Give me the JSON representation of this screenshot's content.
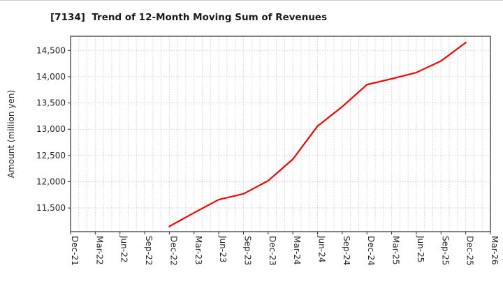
{
  "page": {
    "background_color": "#ffffff",
    "top_border_color": "#c9c9c9"
  },
  "chart_data": {
    "type": "line",
    "title": "[7134]  Trend of 12-Month Moving Sum of Revenues",
    "xlabel": "",
    "ylabel": "Amount (million yen)",
    "grid": true,
    "legend": "none",
    "x_axis": {
      "start": "Dec-21",
      "end": "Mar-26",
      "months_total": 51,
      "gridline_interval_months": 1,
      "tick_label_interval_months": 3
    },
    "x_tick_labels": [
      "Dec-21",
      "Mar-22",
      "Jun-22",
      "Sep-22",
      "Dec-22",
      "Mar-23",
      "Jun-23",
      "Sep-23",
      "Dec-23",
      "Mar-24",
      "Jun-24",
      "Sep-24",
      "Dec-24",
      "Mar-25",
      "Jun-25",
      "Sep-25",
      "Dec-25",
      "Mar-26"
    ],
    "y_ticks": [
      11500,
      12000,
      12500,
      13000,
      13500,
      14000,
      14500
    ],
    "y_tick_labels": [
      "11,500",
      "12,000",
      "12,500",
      "13,000",
      "13,500",
      "14,000",
      "14,500"
    ],
    "ylim": [
      11050,
      14770
    ],
    "series": [
      {
        "name": "12-Month Moving Sum of Revenues",
        "color": "#ff0000",
        "x": [
          "Dec-22",
          "Mar-23",
          "Jun-23",
          "Sep-23",
          "Dec-23",
          "Mar-24",
          "Jun-24",
          "Sep-24",
          "Dec-24",
          "Mar-25",
          "Jun-25",
          "Sep-25",
          "Dec-25"
        ],
        "x_month_index": [
          12,
          15,
          18,
          21,
          24,
          27,
          30,
          33,
          36,
          39,
          42,
          45,
          48
        ],
        "values": [
          11150,
          11410,
          11660,
          11770,
          12020,
          12430,
          13060,
          13430,
          13850,
          13960,
          14080,
          14300,
          14650
        ]
      }
    ],
    "style": {
      "line_width": 2.2,
      "gridline_color": "#b3b3b3",
      "spine_color": "#2e2e2e",
      "tick_label_color": "#262626",
      "title_color": "#1a1a1a"
    }
  }
}
